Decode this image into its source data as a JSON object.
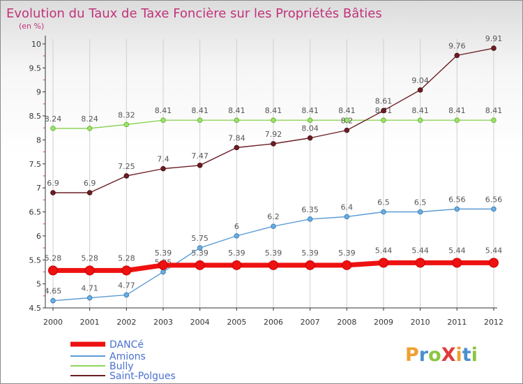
{
  "chart_data": {
    "type": "line",
    "title": "Evolution du Taux de Taxe Foncière sur les Propriétés Bâties",
    "subtitle": "(en %)",
    "x": [
      "2000",
      "2001",
      "2002",
      "2003",
      "2004",
      "2005",
      "2006",
      "2007",
      "2008",
      "2009",
      "2010",
      "2011",
      "2012"
    ],
    "y_ticks": [
      "4.5",
      "5",
      "5.5",
      "6",
      "6.5",
      "7",
      "7.5",
      "8",
      "8.5",
      "9",
      "9.5",
      "10"
    ],
    "ylim": [
      4.5,
      10.1
    ],
    "series": [
      {
        "name": "DANCé",
        "color": "#ee1111",
        "values": [
          5.28,
          5.28,
          5.28,
          5.39,
          5.39,
          5.39,
          5.39,
          5.39,
          5.39,
          5.44,
          5.44,
          5.44,
          5.44
        ],
        "labels": [
          "5.28",
          "5.28",
          "5.28",
          "5.39",
          "5.39",
          "5.39",
          "5.39",
          "5.39",
          "5.39",
          "5.44",
          "5.44",
          "5.44",
          "5.44"
        ]
      },
      {
        "name": "Amions",
        "color": "#5b9bd5",
        "values": [
          4.65,
          4.71,
          4.77,
          5.25,
          5.75,
          6,
          6.2,
          6.35,
          6.4,
          6.5,
          6.5,
          6.56,
          6.56
        ],
        "labels": [
          "4.65",
          "4.71",
          "4.77",
          "5.25",
          "5.75",
          "6",
          "6.2",
          "6.35",
          "6.4",
          "6.5",
          "6.5",
          "6.56",
          "6.56"
        ]
      },
      {
        "name": "Bully",
        "color": "#8fd45a",
        "values": [
          8.24,
          8.24,
          8.32,
          8.41,
          8.41,
          8.41,
          8.41,
          8.41,
          8.41,
          8.41,
          8.41,
          8.41,
          8.41
        ],
        "labels": [
          "8.24",
          "8.24",
          "8.32",
          "8.41",
          "8.41",
          "8.41",
          "8.41",
          "8.41",
          "8.41",
          "8.41",
          "8.41",
          "8.41",
          "8.41"
        ]
      },
      {
        "name": "Saint-Polgues",
        "color": "#6b1e25",
        "values": [
          6.9,
          6.9,
          7.25,
          7.4,
          7.47,
          7.84,
          7.92,
          8.04,
          8.2,
          8.61,
          9.04,
          9.76,
          9.91
        ],
        "labels": [
          "6.9",
          "6.9",
          "7.25",
          "7.4",
          "7.47",
          "7.84",
          "7.92",
          "8.04",
          "8.2",
          "8.61",
          "9.04",
          "9.76",
          "9.91"
        ]
      }
    ]
  },
  "logo": {
    "text": "ProXiti",
    "letters": [
      "P",
      "r",
      "o",
      "X",
      "i",
      "t",
      "i"
    ],
    "colors": [
      "#f0a030",
      "#4a90d0",
      "#8cc63f",
      "#e23b3b",
      "#f0a030",
      "#4a90d0",
      "#8cc63f"
    ]
  }
}
